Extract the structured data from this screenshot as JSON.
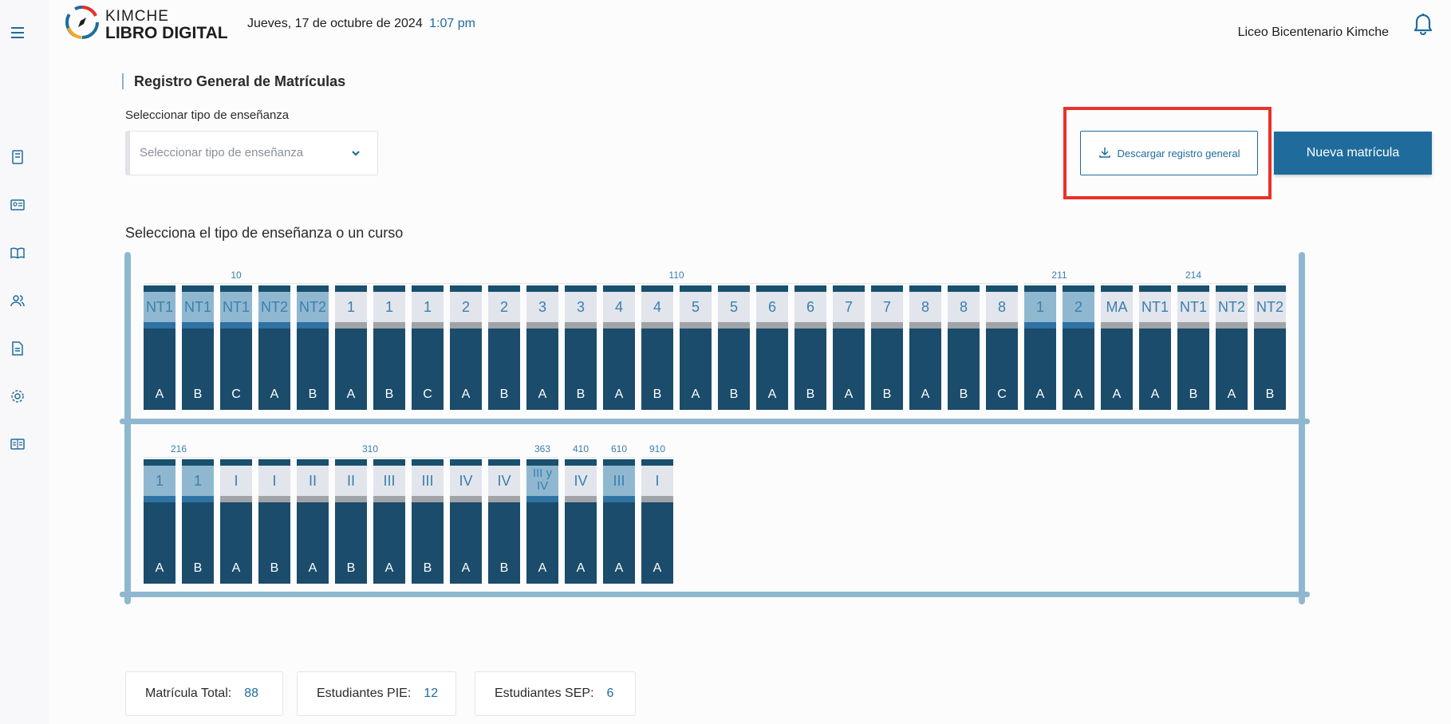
{
  "header": {
    "logo_top": "KIMCHE",
    "logo_bottom": "LIBRO DIGITAL",
    "date": "Jueves, 17 de octubre de 2024",
    "time": "1:07 pm",
    "school": "Liceo Bicentenario Kimche"
  },
  "sidebar": {
    "icons": [
      "menu-icon",
      "notebook-icon",
      "id-card-icon",
      "book-icon",
      "users-icon",
      "document-icon",
      "settings-icon",
      "open-book-icon"
    ]
  },
  "page": {
    "title": "Registro General de Matrículas",
    "select_label": "Seleccionar tipo de enseñanza",
    "select_placeholder": "Seleccionar tipo de enseñanza",
    "download_label": "Descargar registro general",
    "new_label": "Nueva matrícula",
    "choose_text": "Selecciona el tipo de enseñanza o un curso"
  },
  "colors": {
    "accent": "#1f6c9c",
    "highlight": "#e8322a",
    "course_dark": "#1b4c6b",
    "course_light": "#e2e5ec",
    "frame": "#8fb8d0"
  },
  "rows": [
    {
      "groups": [
        {
          "label": "10",
          "count": 5
        },
        {
          "label": "110",
          "count": 18
        },
        {
          "label": "211",
          "count": 2
        },
        {
          "label": "214",
          "count": 5
        }
      ],
      "courses": [
        {
          "level": "NT1",
          "letter": "A",
          "hl": true,
          "strip": "blue"
        },
        {
          "level": "NT1",
          "letter": "B",
          "hl": true,
          "strip": "blue"
        },
        {
          "level": "NT1",
          "letter": "C",
          "hl": true,
          "strip": "blue"
        },
        {
          "level": "NT2",
          "letter": "A",
          "hl": true,
          "strip": "blue"
        },
        {
          "level": "NT2",
          "letter": "B",
          "hl": true,
          "strip": "blue"
        },
        {
          "level": "1",
          "letter": "A",
          "hl": false,
          "strip": "gray"
        },
        {
          "level": "1",
          "letter": "B",
          "hl": false,
          "strip": "gray"
        },
        {
          "level": "1",
          "letter": "C",
          "hl": false,
          "strip": "gray"
        },
        {
          "level": "2",
          "letter": "A",
          "hl": false,
          "strip": "gray"
        },
        {
          "level": "2",
          "letter": "B",
          "hl": false,
          "strip": "gray"
        },
        {
          "level": "3",
          "letter": "A",
          "hl": false,
          "strip": "gray"
        },
        {
          "level": "3",
          "letter": "B",
          "hl": false,
          "strip": "gray"
        },
        {
          "level": "4",
          "letter": "A",
          "hl": false,
          "strip": "gray"
        },
        {
          "level": "4",
          "letter": "B",
          "hl": false,
          "strip": "gray"
        },
        {
          "level": "5",
          "letter": "A",
          "hl": false,
          "strip": "gray"
        },
        {
          "level": "5",
          "letter": "B",
          "hl": false,
          "strip": "gray"
        },
        {
          "level": "6",
          "letter": "A",
          "hl": false,
          "strip": "gray"
        },
        {
          "level": "6",
          "letter": "B",
          "hl": false,
          "strip": "gray"
        },
        {
          "level": "7",
          "letter": "A",
          "hl": false,
          "strip": "gray"
        },
        {
          "level": "7",
          "letter": "B",
          "hl": false,
          "strip": "gray"
        },
        {
          "level": "8",
          "letter": "A",
          "hl": false,
          "strip": "gray"
        },
        {
          "level": "8",
          "letter": "B",
          "hl": false,
          "strip": "gray"
        },
        {
          "level": "8",
          "letter": "C",
          "hl": false,
          "strip": "gray"
        },
        {
          "level": "1",
          "letter": "A",
          "hl": true,
          "strip": "blue"
        },
        {
          "level": "2",
          "letter": "A",
          "hl": true,
          "strip": "blue"
        },
        {
          "level": "MA",
          "letter": "A",
          "hl": false,
          "strip": "gray"
        },
        {
          "level": "NT1",
          "letter": "A",
          "hl": false,
          "strip": "gray"
        },
        {
          "level": "NT1",
          "letter": "B",
          "hl": false,
          "strip": "gray"
        },
        {
          "level": "NT2",
          "letter": "A",
          "hl": false,
          "strip": "gray"
        },
        {
          "level": "NT2",
          "letter": "B",
          "hl": false,
          "strip": "gray"
        }
      ]
    },
    {
      "groups": [
        {
          "label": "216",
          "count": 2
        },
        {
          "label": "310",
          "count": 8
        },
        {
          "label": "363",
          "count": 1
        },
        {
          "label": "410",
          "count": 1
        },
        {
          "label": "610",
          "count": 1
        },
        {
          "label": "910",
          "count": 1
        }
      ],
      "courses": [
        {
          "level": "1",
          "letter": "A",
          "hl": true,
          "strip": "blue"
        },
        {
          "level": "1",
          "letter": "B",
          "hl": true,
          "strip": "blue"
        },
        {
          "level": "I",
          "letter": "A",
          "hl": false,
          "strip": "gray"
        },
        {
          "level": "I",
          "letter": "B",
          "hl": false,
          "strip": "gray"
        },
        {
          "level": "II",
          "letter": "A",
          "hl": false,
          "strip": "gray"
        },
        {
          "level": "II",
          "letter": "B",
          "hl": false,
          "strip": "gray"
        },
        {
          "level": "III",
          "letter": "A",
          "hl": false,
          "strip": "gray"
        },
        {
          "level": "III",
          "letter": "B",
          "hl": false,
          "strip": "gray"
        },
        {
          "level": "IV",
          "letter": "A",
          "hl": false,
          "strip": "gray"
        },
        {
          "level": "IV",
          "letter": "B",
          "hl": false,
          "strip": "gray"
        },
        {
          "level": "III y IV",
          "letter": "A",
          "hl": true,
          "strip": "blue",
          "small": true
        },
        {
          "level": "IV",
          "letter": "A",
          "hl": false,
          "strip": "gray"
        },
        {
          "level": "III",
          "letter": "A",
          "hl": true,
          "strip": "blue"
        },
        {
          "level": "I",
          "letter": "A",
          "hl": false,
          "strip": "gray"
        }
      ]
    }
  ],
  "stats": [
    {
      "label": "Matrícula Total:",
      "value": "88"
    },
    {
      "label": "Estudiantes PIE:",
      "value": "12"
    },
    {
      "label": "Estudiantes SEP:",
      "value": "6"
    }
  ]
}
